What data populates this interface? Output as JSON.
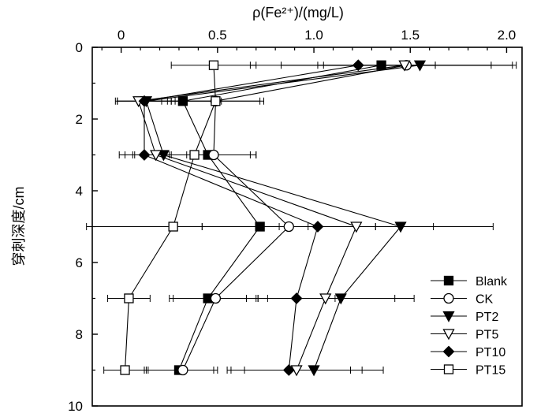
{
  "chart_data": {
    "type": "line",
    "x_label_text": "ρ(Fe²⁺)/(mg/L)",
    "y_label_text": "穿刺深度/cm",
    "xlim": [
      -0.15,
      2.08
    ],
    "ylim": [
      0,
      10
    ],
    "x_ticks": [
      0,
      0.5,
      1.0,
      1.5,
      2.0
    ],
    "x_tick_labels": [
      "0",
      "0.5",
      "1.0",
      "1.5",
      "2.0"
    ],
    "y_ticks": [
      0,
      2,
      4,
      6,
      8,
      10
    ],
    "y_tick_labels": [
      "0",
      "2",
      "4",
      "6",
      "8",
      "10"
    ],
    "x_axis_position": "top",
    "grid": false,
    "legend_position": "bottom-right",
    "depths": [
      0.5,
      1.5,
      3.0,
      5.0,
      7.0,
      9.0
    ],
    "series": [
      {
        "name": "Blank",
        "marker": "square-filled",
        "x": [
          1.35,
          0.32,
          0.45,
          0.72,
          0.45,
          0.3
        ],
        "err": [
          0.68,
          0.2,
          0.22,
          0.3,
          0.2,
          0.18
        ]
      },
      {
        "name": "CK",
        "marker": "circle-open",
        "x": [
          1.48,
          0.49,
          0.48,
          0.87,
          0.49,
          0.32
        ],
        "err": [
          0.15,
          0.25,
          0.22,
          0.45,
          0.22,
          0.18
        ]
      },
      {
        "name": "PT2",
        "marker": "triangle-down-filled",
        "x": [
          1.55,
          0.13,
          0.22,
          1.45,
          1.14,
          1.0
        ],
        "err": [
          0.5,
          0.15,
          0.15,
          0.48,
          0.38,
          0.36
        ]
      },
      {
        "name": "PT5",
        "marker": "triangle-down-open",
        "x": [
          1.47,
          0.09,
          0.18,
          1.22,
          1.06,
          0.91
        ],
        "err": [
          0.45,
          0.12,
          0.16,
          0.4,
          0.36,
          0.34
        ]
      },
      {
        "name": "PT10",
        "marker": "diamond-filled",
        "x": [
          1.23,
          0.12,
          0.12,
          1.02,
          0.91,
          0.87
        ],
        "err": [
          0.4,
          0.14,
          0.13,
          0.3,
          0.2,
          0.32
        ]
      },
      {
        "name": "PT15",
        "marker": "square-open",
        "x": [
          0.48,
          0.49,
          0.38,
          0.27,
          0.04,
          0.02
        ],
        "err": [
          0.22,
          0.23,
          0.32,
          0.45,
          0.11,
          0.11
        ]
      }
    ],
    "colors": {
      "line": "#000000",
      "open_fill": "#ffffff",
      "filled": "#000000"
    }
  }
}
